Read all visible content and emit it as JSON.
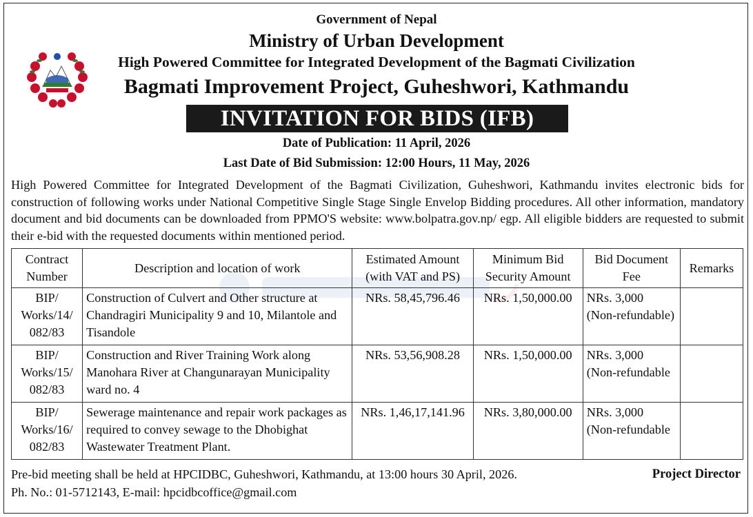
{
  "header": {
    "government": "Government of Nepal",
    "ministry": "Ministry of Urban Development",
    "committee": "High Powered Committee for Integrated Development of the Bagmati Civilization",
    "project": "Bagmati Improvement Project, Guheshwori, Kathmandu",
    "notice_title": "INVITATION FOR BIDS (IFB)",
    "publication_date": "Date of Publication: 11 April, 2026",
    "last_submission": "Last Date of Bid Submission: 12:00 Hours, 11 May, 2026"
  },
  "intro": "High Powered Committee for Integrated Development of the Bagmati Civilization, Guheshwori, Kathmandu invites electronic bids for construction of following works under National Competitive Single Stage Single Envelop Bidding procedures. All other information, mandatory document and bid documents can be downloaded from PPMO'S website: www.bolpatra.gov.np/ egp. All eligible bidders are requested to submit their e-bid with the requested documents within mentioned period.",
  "table": {
    "headers": {
      "contract_number": "Contract Number",
      "description": "Description and location of work",
      "estimated_amount": "Estimated Amount (with VAT and PS)",
      "bid_security": "Minimum Bid Security Amount",
      "document_fee": "Bid Document Fee",
      "remarks": "Remarks"
    },
    "rows": [
      {
        "contract_number": "BIP/ Works/14/ 082/83",
        "description": "Construction of Culvert and Other structure at Chandragiri Municipality 9 and 10, Milantole and Tisandole",
        "estimated_amount": "NRs. 58,45,796.46",
        "bid_security": "NRs. 1,50,000.00",
        "document_fee": "NRs. 3,000 (Non-refundable)",
        "remarks": ""
      },
      {
        "contract_number": "BIP/ Works/15/ 082/83",
        "description": "Construction and River Training Work along Manohara River at Changunarayan Municipality ward no. 4",
        "estimated_amount": "NRs. 53,56,908.28",
        "bid_security": "NRs. 1,50,000.00",
        "document_fee": "NRs. 3,000 (Non-refundable",
        "remarks": ""
      },
      {
        "contract_number": "BIP/ Works/16/ 082/83",
        "description": "Sewerage maintenance and repair work packages as required to convey sewage to the Dhobighat Wastewater Treatment Plant.",
        "estimated_amount": "NRs. 1,46,17,141.96",
        "bid_security": "NRs. 3,80,000.00",
        "document_fee": "NRs. 3,000 (Non-refundable",
        "remarks": ""
      }
    ]
  },
  "footer": {
    "prebid": "Pre-bid meeting shall be held at HPCIDBC, Guheshwori, Kathmandu, at 13:00 hours 30 April, 2026.",
    "signatory": "Project Director",
    "contact": "Ph. No.: 01-5712143, E-mail: hpcidbcoffice@gmail.com"
  },
  "colors": {
    "emblem_red": "#c8102e",
    "emblem_blue": "#1f4fa8",
    "bar": "#1a1a1a"
  },
  "icons": {
    "emblem": "nepal-emblem-icon"
  }
}
